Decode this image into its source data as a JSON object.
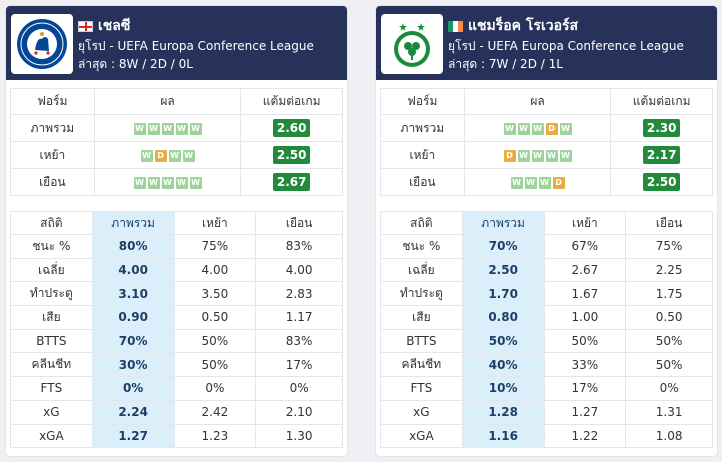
{
  "teams": [
    {
      "name": "เชลซี",
      "flag": "england",
      "competition": "ยุโรป - UEFA Europa Conference League",
      "last": "ล่าสุด : 8W / 2D / 0L",
      "form_headers": [
        "ฟอร์ม",
        "ผล",
        "แต้มต่อเกม"
      ],
      "form": [
        {
          "label": "ภาพรวม",
          "results": [
            "W",
            "W",
            "W",
            "W",
            "W"
          ],
          "ppg": "2.60"
        },
        {
          "label": "เหย้า",
          "results": [
            "W",
            "D",
            "W",
            "W"
          ],
          "ppg": "2.50"
        },
        {
          "label": "เยือน",
          "results": [
            "W",
            "W",
            "W",
            "W",
            "W"
          ],
          "ppg": "2.67"
        }
      ],
      "stat_headers": [
        "สถิติ",
        "ภาพรวม",
        "เหย้า",
        "เยือน"
      ],
      "stats": [
        {
          "label": "ชนะ %",
          "overall": "80%",
          "home": "75%",
          "away": "83%"
        },
        {
          "label": "เฉลี่ย",
          "overall": "4.00",
          "home": "4.00",
          "away": "4.00"
        },
        {
          "label": "ทำประตู",
          "overall": "3.10",
          "home": "3.50",
          "away": "2.83"
        },
        {
          "label": "เสีย",
          "overall": "0.90",
          "home": "0.50",
          "away": "1.17"
        },
        {
          "label": "BTTS",
          "overall": "70%",
          "home": "50%",
          "away": "83%"
        },
        {
          "label": "คลีนชีท",
          "overall": "30%",
          "home": "50%",
          "away": "17%"
        },
        {
          "label": "FTS",
          "overall": "0%",
          "home": "0%",
          "away": "0%"
        },
        {
          "label": "xG",
          "overall": "2.24",
          "home": "2.42",
          "away": "2.10"
        },
        {
          "label": "xGA",
          "overall": "1.27",
          "home": "1.23",
          "away": "1.30"
        }
      ]
    },
    {
      "name": "แชมร็อค โรเวอร์ส",
      "flag": "ireland",
      "competition": "ยุโรป - UEFA Europa Conference League",
      "last": "ล่าสุด : 7W / 2D / 1L",
      "form_headers": [
        "ฟอร์ม",
        "ผล",
        "แต้มต่อเกม"
      ],
      "form": [
        {
          "label": "ภาพรวม",
          "results": [
            "W",
            "W",
            "W",
            "D",
            "W"
          ],
          "ppg": "2.30"
        },
        {
          "label": "เหย้า",
          "results": [
            "D",
            "W",
            "W",
            "W",
            "W"
          ],
          "ppg": "2.17"
        },
        {
          "label": "เยือน",
          "results": [
            "W",
            "W",
            "W",
            "D"
          ],
          "ppg": "2.50"
        }
      ],
      "stat_headers": [
        "สถิติ",
        "ภาพรวม",
        "เหย้า",
        "เยือน"
      ],
      "stats": [
        {
          "label": "ชนะ %",
          "overall": "70%",
          "home": "67%",
          "away": "75%"
        },
        {
          "label": "เฉลี่ย",
          "overall": "2.50",
          "home": "2.67",
          "away": "2.25"
        },
        {
          "label": "ทำประตู",
          "overall": "1.70",
          "home": "1.67",
          "away": "1.75"
        },
        {
          "label": "เสีย",
          "overall": "0.80",
          "home": "1.00",
          "away": "0.50"
        },
        {
          "label": "BTTS",
          "overall": "50%",
          "home": "50%",
          "away": "50%"
        },
        {
          "label": "คลีนชีท",
          "overall": "40%",
          "home": "33%",
          "away": "50%"
        },
        {
          "label": "FTS",
          "overall": "10%",
          "home": "17%",
          "away": "0%"
        },
        {
          "label": "xG",
          "overall": "1.28",
          "home": "1.27",
          "away": "1.31"
        },
        {
          "label": "xGA",
          "overall": "1.16",
          "home": "1.22",
          "away": "1.08"
        }
      ]
    }
  ],
  "colors": {
    "header_bg": "#27325a",
    "win": "#9ed39a",
    "draw": "#e7ad45",
    "ppg_bg": "#248a3b",
    "highlight": "#dbeffb"
  }
}
